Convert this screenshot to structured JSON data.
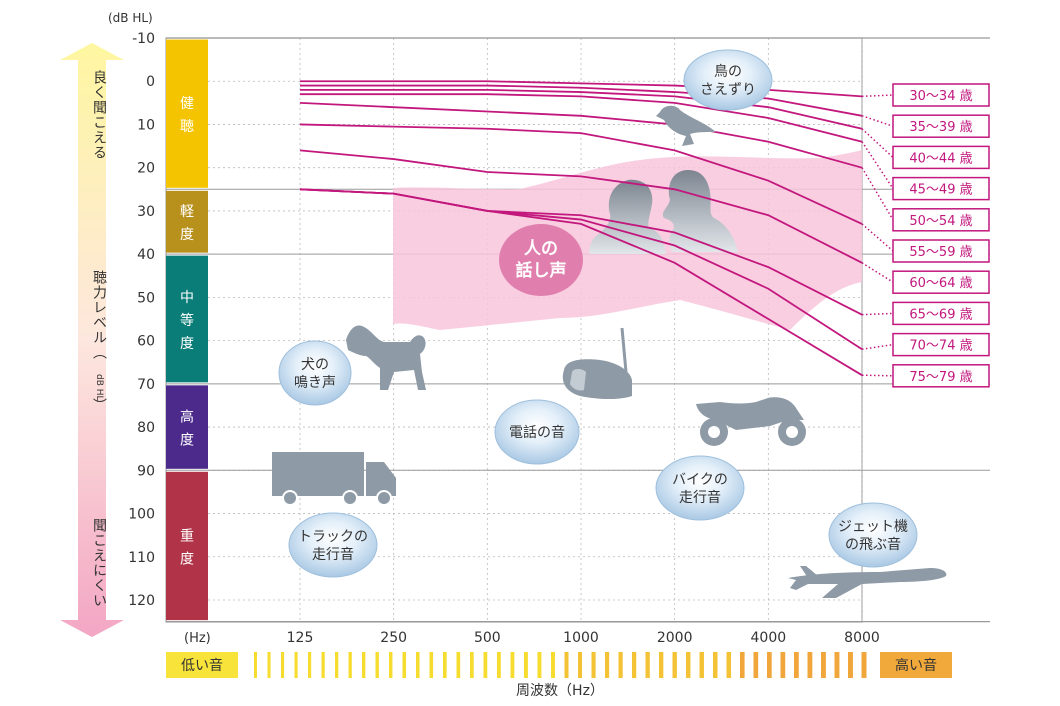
{
  "chart_data": {
    "type": "line",
    "ylabel_unit": "(dB HL)",
    "xlabel_unit": "(Hz)",
    "xlabel": "周波数（Hz）",
    "x_ticks": [
      "125",
      "250",
      "500",
      "1000",
      "2000",
      "4000",
      "8000"
    ],
    "x": [
      125,
      250,
      500,
      1000,
      2000,
      4000,
      8000
    ],
    "y_ticks": [
      "-10",
      "0",
      "10",
      "20",
      "30",
      "40",
      "50",
      "60",
      "70",
      "80",
      "90",
      "100",
      "110",
      "120"
    ],
    "ylim": [
      -10,
      125
    ],
    "y_axis_direction": "down",
    "grid": true,
    "zones": [
      {
        "label": "健聴",
        "from": -10,
        "to": 25,
        "color": "#f5c400"
      },
      {
        "label": "軽度",
        "from": 25,
        "to": 40,
        "color": "#b8901c"
      },
      {
        "label": "中等度",
        "from": 40,
        "to": 70,
        "color": "#0a7d78"
      },
      {
        "label": "高度",
        "from": 70,
        "to": 90,
        "color": "#4b2a8c"
      },
      {
        "label": "重度",
        "from": 90,
        "to": 125,
        "color": "#b13348"
      }
    ],
    "series": [
      {
        "name": "30〜34 歳",
        "values": [
          0,
          0,
          0,
          0.5,
          1,
          2,
          3.5
        ]
      },
      {
        "name": "35〜39 歳",
        "values": [
          1,
          1,
          1,
          1.5,
          2.5,
          4,
          8
        ]
      },
      {
        "name": "40〜44 歳",
        "values": [
          2,
          2,
          2,
          2.5,
          3.5,
          6,
          11
        ]
      },
      {
        "name": "45〜49 歳",
        "values": [
          3,
          3,
          3,
          3.5,
          5,
          8.5,
          14
        ]
      },
      {
        "name": "50〜54 歳",
        "values": [
          5,
          6,
          7,
          8,
          10,
          14,
          20
        ]
      },
      {
        "name": "55〜59 歳",
        "values": [
          10,
          10.5,
          11,
          12,
          16,
          23,
          33
        ]
      },
      {
        "name": "60〜64 歳",
        "values": [
          16,
          18,
          21,
          22,
          25,
          31,
          42
        ]
      },
      {
        "name": "65〜69 歳",
        "values": [
          25,
          26,
          30,
          31,
          35,
          43,
          54
        ]
      },
      {
        "name": "70〜74 歳",
        "values": [
          25,
          26,
          30,
          32,
          38,
          48,
          62
        ]
      },
      {
        "name": "75〜79 歳",
        "values": [
          25,
          26,
          30,
          33,
          42,
          55,
          68
        ]
      }
    ],
    "speech_banana_label": "人の\n話し声",
    "annotations": [
      {
        "id": "bird",
        "text": "鳥の\nさえずり",
        "x": 5000,
        "y": 0
      },
      {
        "id": "dog",
        "text": "犬の\n鳴き声",
        "x": 110,
        "y": 64
      },
      {
        "id": "phone",
        "text": "電話の音",
        "x": 880,
        "y": 82
      },
      {
        "id": "bike",
        "text": "バイクの\n走行音",
        "x": 2650,
        "y": 96
      },
      {
        "id": "truck",
        "text": "トラックの\n走行音",
        "x": 220,
        "y": 106
      },
      {
        "id": "jet",
        "text": "ジェット機\nの飛ぶ音",
        "x": 7600,
        "y": 103
      }
    ],
    "left_scale": {
      "top_label": "良く聞こえる",
      "middle_label": "聴力レベル（dB HL）",
      "middle_label_main": "聴力レベル（",
      "middle_label_unit": "dB HL",
      "middle_label_close": "）",
      "bottom_label": "聞こえにくい"
    },
    "bottom_scale": {
      "low_label": "低い音",
      "high_label": "高い音"
    }
  },
  "colors": {
    "series_line": "#c2177d",
    "label_box": "#c2177d",
    "banana": "#f7c6dc",
    "banana_label_bg": "#e07fad",
    "bubble_fill": "#cfe3f3",
    "bubble_stroke": "#9ebfdc",
    "silhouette": "#8e9aa6",
    "grid": "#bbbbbb",
    "arrow_top": "#fff7a8",
    "arrow_bottom": "#f2a9c5",
    "bar_yellow": "#f7e23a",
    "bar_orange": "#f0a93a"
  },
  "icons": [
    "bird-silhouette-icon",
    "people-silhouette-icon",
    "dog-silhouette-icon",
    "telephone-silhouette-icon",
    "motorcycle-silhouette-icon",
    "truck-silhouette-icon",
    "airplane-silhouette-icon"
  ]
}
